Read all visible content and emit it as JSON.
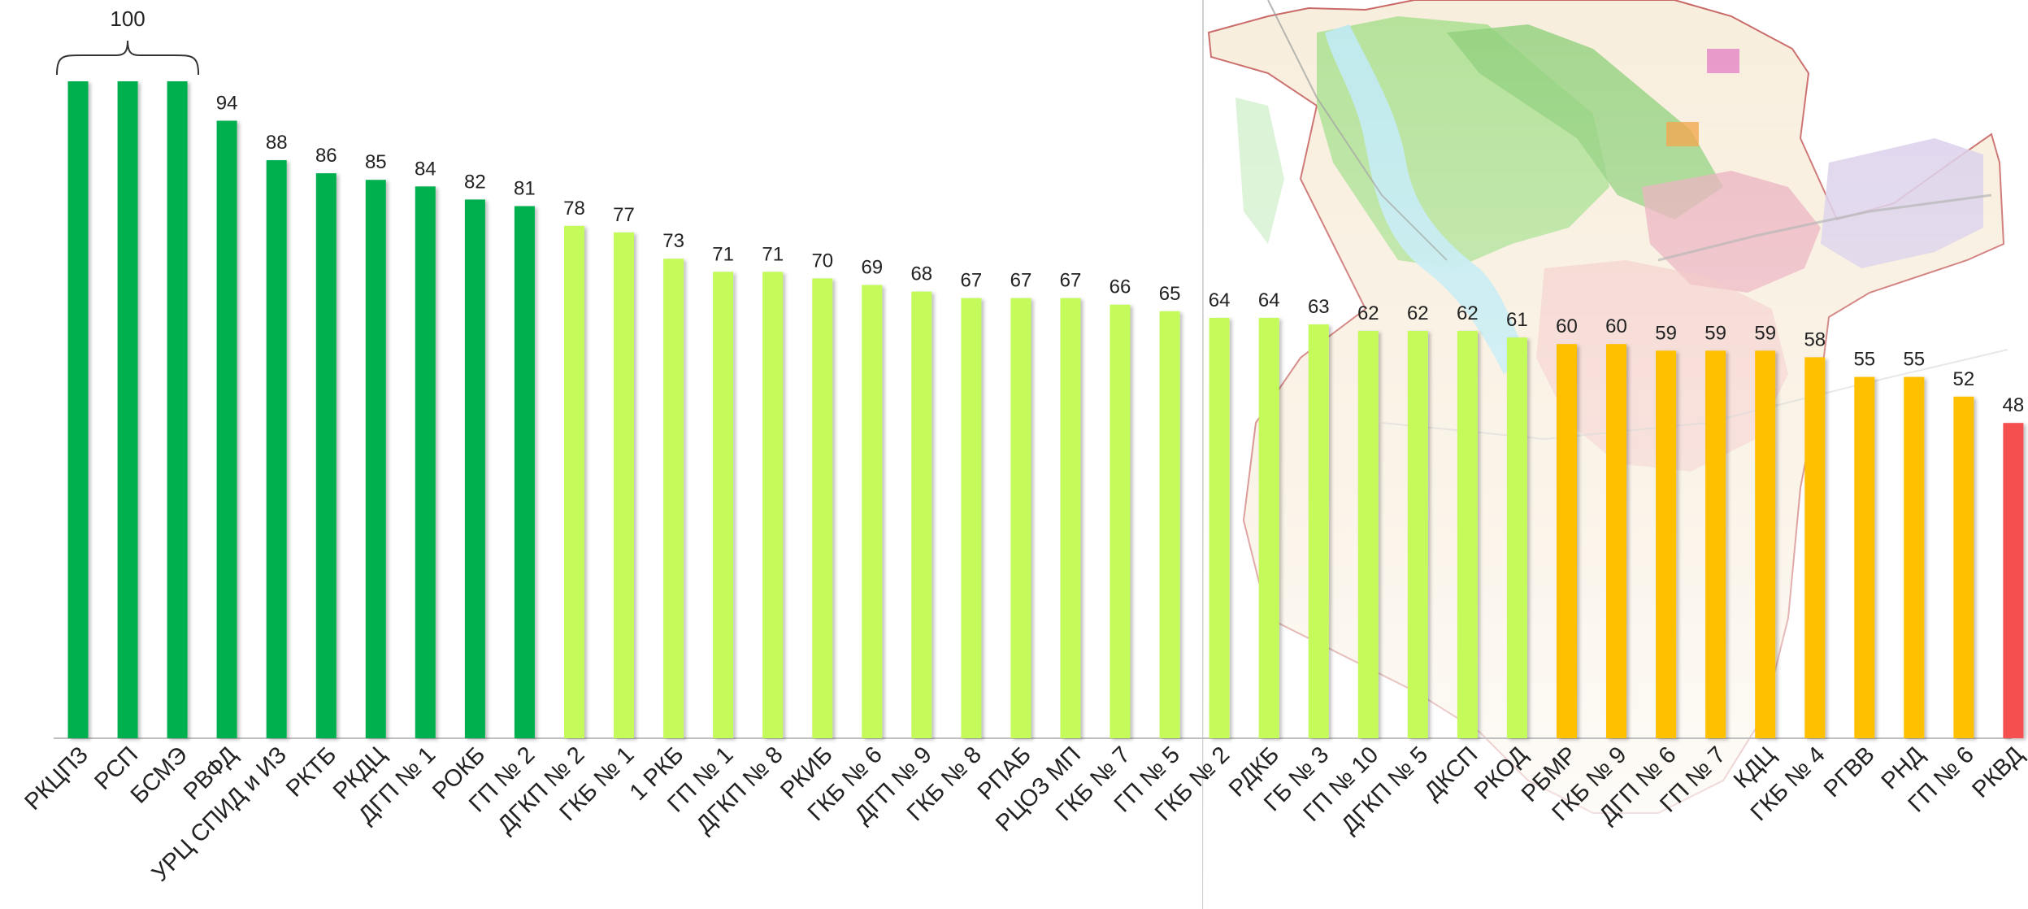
{
  "chart_data": {
    "type": "bar",
    "categories": [
      "РКЦПЗ",
      "РСП",
      "БСМЭ",
      "РВФД",
      "УРЦ СПИД и ИЗ",
      "РКТБ",
      "РКДЦ",
      "ДГП № 1",
      "РОКБ",
      "ГП № 2",
      "ДГКП № 2",
      "ГКБ № 1",
      "1 РКБ",
      "ГП № 1",
      "ДГКП № 8",
      "РКИБ",
      "ГКБ № 6",
      "ДГП № 9",
      "ГКБ № 8",
      "РПАБ",
      "РЦОЗ МП",
      "ГКБ № 7",
      "ГП № 5",
      "ГКБ № 2",
      "РДКБ",
      "ГБ № 3",
      "ГП № 10",
      "ДГКП № 5",
      "ДКСП",
      "РКОД",
      "РБМР",
      "ГКБ № 9",
      "ДГП № 6",
      "ГП № 7",
      "КДЦ",
      "ГКБ № 4",
      "РГВВ",
      "РНД",
      "ГП № 6",
      "РКВД"
    ],
    "values": [
      100,
      100,
      100,
      94,
      88,
      86,
      85,
      84,
      82,
      81,
      78,
      77,
      73,
      71,
      71,
      70,
      69,
      68,
      67,
      67,
      67,
      66,
      65,
      64,
      64,
      63,
      62,
      62,
      62,
      61,
      60,
      60,
      59,
      59,
      59,
      58,
      55,
      55,
      52,
      48
    ],
    "value_labels": [
      "",
      "",
      "",
      "94",
      "88",
      "86",
      "85",
      "84",
      "82",
      "81",
      "78",
      "77",
      "73",
      "71",
      "71",
      "70",
      "69",
      "68",
      "67",
      "67",
      "67",
      "66",
      "65",
      "64",
      "64",
      "63",
      "62",
      "62",
      "62",
      "61",
      "60",
      "60",
      "59",
      "59",
      "59",
      "58",
      "55",
      "55",
      "52",
      "48"
    ],
    "group_annotation": {
      "label": "100",
      "from_index": 0,
      "to_index": 2
    },
    "ylim": [
      0,
      100
    ],
    "grid": false,
    "colors": {
      "high": "#00B050",
      "medium": "#C4FA5A",
      "low": "#FFC000",
      "critical": "#F55050",
      "axis": "#BFBFBF"
    },
    "color_groups": [
      "high",
      "high",
      "high",
      "high",
      "high",
      "high",
      "high",
      "high",
      "high",
      "high",
      "medium",
      "medium",
      "medium",
      "medium",
      "medium",
      "medium",
      "medium",
      "medium",
      "medium",
      "medium",
      "medium",
      "medium",
      "medium",
      "medium",
      "medium",
      "medium",
      "medium",
      "medium",
      "medium",
      "medium",
      "low",
      "low",
      "low",
      "low",
      "low",
      "low",
      "low",
      "low",
      "low",
      "critical"
    ],
    "background": "map-image"
  }
}
